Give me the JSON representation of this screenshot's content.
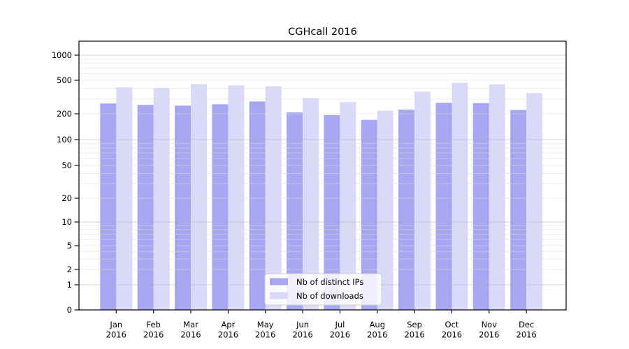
{
  "title": "CGHcall 2016",
  "chart_data": {
    "type": "bar",
    "title": "CGHcall 2016",
    "categories": [
      "Jan",
      "Feb",
      "Mar",
      "Apr",
      "May",
      "Jun",
      "Jul",
      "Aug",
      "Sep",
      "Oct",
      "Nov",
      "Dec"
    ],
    "year": "2016",
    "series": [
      {
        "name": "Nb of distinct IPs",
        "color": "#a6a6f2",
        "values": [
          265,
          255,
          250,
          260,
          280,
          208,
          193,
          170,
          224,
          270,
          268,
          222
        ]
      },
      {
        "name": "Nb of downloads",
        "color": "#dadaf8",
        "values": [
          412,
          405,
          452,
          436,
          424,
          308,
          276,
          218,
          368,
          465,
          446,
          353
        ]
      }
    ],
    "y_axis": {
      "scale": "symlog",
      "ticks": [
        0,
        1,
        2,
        5,
        10,
        20,
        50,
        100,
        200,
        500,
        1000
      ],
      "major_gridlines": [
        1,
        10,
        100,
        1000
      ],
      "minor_gridlines": [
        3,
        4,
        6,
        7,
        8,
        9,
        30,
        40,
        60,
        70,
        80,
        90,
        300,
        400,
        600,
        700,
        800,
        900
      ],
      "ylim": [
        0,
        1500
      ]
    },
    "xlabel": "",
    "ylabel": "",
    "grid": true,
    "legend": {
      "position": "lower center",
      "entries": [
        "Nb of distinct IPs",
        "Nb of downloads"
      ]
    }
  },
  "colors": {
    "background": "#ffffff",
    "bar_ips": "#a6a6f2",
    "bar_downloads": "#dadaf8",
    "grid_major": "#aaaaaa",
    "grid_minor": "#dddddd",
    "axis": "#000000",
    "legend_border": "#cccccc",
    "legend_bg": "#ffffff"
  }
}
